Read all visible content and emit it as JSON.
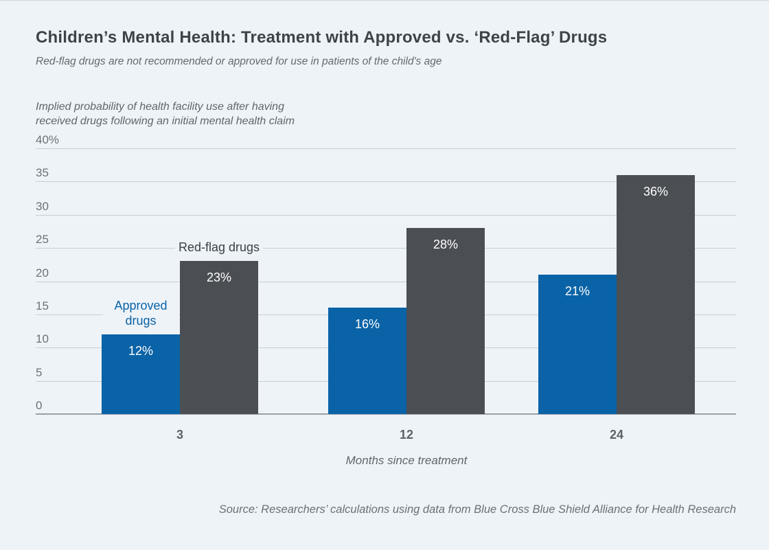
{
  "header": {
    "title": "Children’s Mental Health: Treatment with Approved vs. ‘Red-Flag’ Drugs",
    "subtitle": "Red-flag drugs are not recommended or approved for use in patients of the child's age"
  },
  "chart_data": {
    "type": "bar",
    "title": "Children’s Mental Health: Treatment with Approved vs. ‘Red-Flag’ Drugs",
    "subtitle": "Red-flag drugs are not recommended or approved for use in patients of the child's age",
    "ylabel": "Implied probability of health facility use after having\nreceived drugs following an initial mental health claim",
    "xlabel": "Months since treatment",
    "categories": [
      "3",
      "12",
      "24"
    ],
    "series": [
      {
        "name": "Approved drugs",
        "color": "#0a63a6",
        "values": [
          12,
          16,
          21
        ]
      },
      {
        "name": "Red-flag drugs",
        "color": "#4b4f54",
        "values": [
          23,
          28,
          36
        ]
      }
    ],
    "value_suffix": "%",
    "ylim": [
      0,
      40
    ],
    "yticks": [
      {
        "value": 40,
        "label": "40%"
      },
      {
        "value": 35,
        "label": "35"
      },
      {
        "value": 30,
        "label": "30"
      },
      {
        "value": 25,
        "label": "25"
      },
      {
        "value": 20,
        "label": "20"
      },
      {
        "value": 15,
        "label": "15"
      },
      {
        "value": 10,
        "label": "10"
      },
      {
        "value": 5,
        "label": "5"
      },
      {
        "value": 0,
        "label": "0"
      }
    ],
    "grid": true,
    "legend_position": "inline above first bar pair"
  },
  "footer": {
    "source": "Source: Researchers’ calculations using data from Blue Cross Blue Shield Alliance for Health Research"
  }
}
